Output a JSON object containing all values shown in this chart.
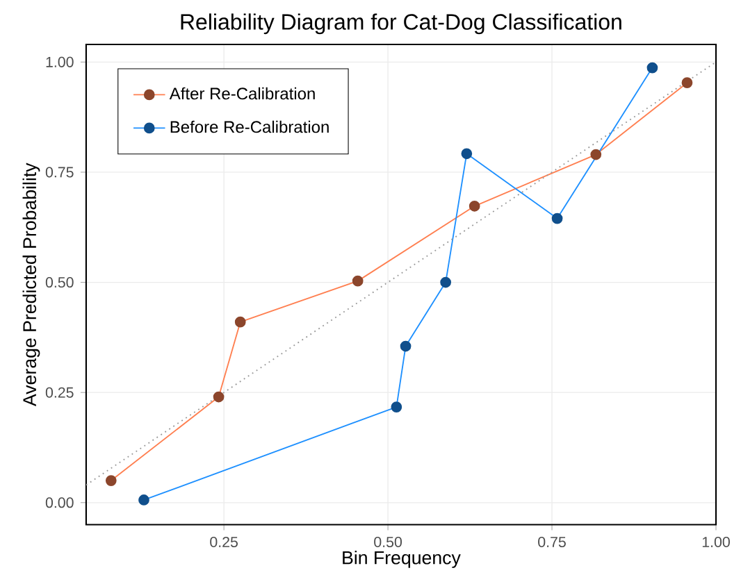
{
  "chart_data": {
    "type": "line",
    "title": "Reliability Diagram for Cat-Dog Classification",
    "xlabel": "Bin Frequency",
    "ylabel": "Average Predicted Probability",
    "xlim": [
      0.04,
      1.0
    ],
    "ylim": [
      -0.05,
      1.04
    ],
    "xticks": [
      0.25,
      {
        "value": 0.5,
        "label": "0.50"
      },
      0.75,
      {
        "value": 1.0,
        "label": "1.00"
      }
    ],
    "yticks": [
      {
        "value": 0,
        "label": "0.00"
      },
      0.25,
      {
        "value": 0.5,
        "label": "0.50"
      },
      0.75,
      {
        "value": 1.0,
        "label": "1.00"
      }
    ],
    "grid": true,
    "legend": "top left",
    "marker": "circle",
    "series": [
      {
        "name": "After Re-Calibration",
        "color": "#ff7f50",
        "x": [
          0.078,
          0.242,
          0.275,
          0.454,
          0.632,
          0.817,
          0.956
        ],
        "values": [
          0.05,
          0.24,
          0.41,
          0.503,
          0.673,
          0.79,
          0.953
        ]
      },
      {
        "name": "Before Re-Calibration",
        "color": "#1e90ff",
        "x": [
          0.128,
          0.513,
          0.527,
          0.588,
          0.62,
          0.758,
          0.903
        ],
        "values": [
          0.006,
          0.217,
          0.355,
          0.5,
          0.792,
          0.645,
          0.987
        ]
      },
      {
        "color": "#999999",
        "line_style": "dotted",
        "marker": "none",
        "x": [
          0.04,
          1.0
        ],
        "values": [
          0.04,
          1.0
        ]
      }
    ]
  }
}
